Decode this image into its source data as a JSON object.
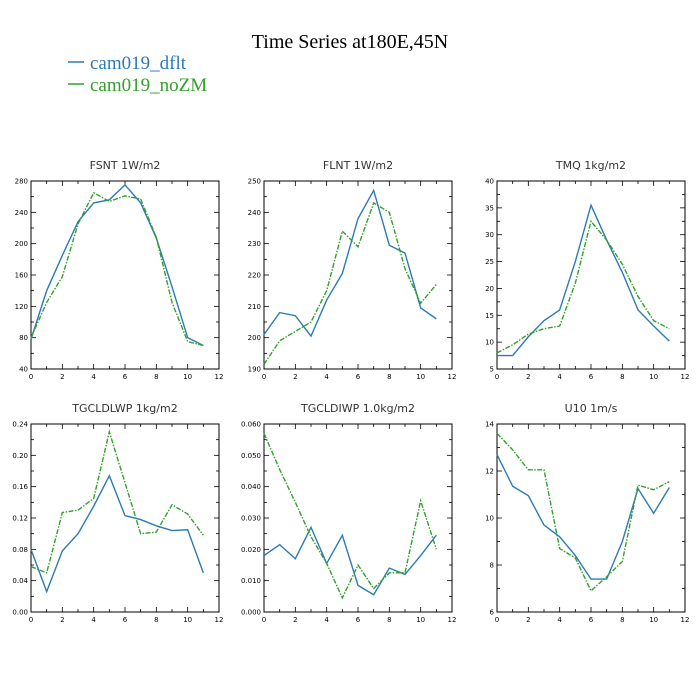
{
  "figure": {
    "title": "Time Series at180E,45N"
  },
  "colors": {
    "dflt": "#2c7bb6",
    "nozm": "#33a02c"
  },
  "chart_data": [
    {
      "type": "line",
      "title": "FSNT",
      "units": "1W/m2",
      "xlim": [
        0,
        12
      ],
      "xticks": [
        0,
        2,
        4,
        6,
        8,
        10,
        12
      ],
      "ylim": [
        40,
        280
      ],
      "yticks": [
        40,
        80,
        120,
        160,
        200,
        240,
        280
      ],
      "ytick_labels": [
        "40",
        "80",
        "120",
        "160",
        "200",
        "240",
        "280"
      ],
      "x": [
        0,
        1,
        2,
        3,
        4,
        5,
        6,
        7,
        8,
        9,
        10,
        11
      ],
      "series": [
        {
          "name": "cam019_dflt",
          "values": [
            78,
            140,
            185,
            228,
            252,
            256,
            275,
            252,
            207,
            145,
            80,
            70
          ]
        },
        {
          "name": "cam019_noZM",
          "values": [
            80,
            125,
            158,
            225,
            265,
            254,
            261,
            257,
            208,
            125,
            75,
            70
          ]
        }
      ]
    },
    {
      "type": "line",
      "title": "FLNT",
      "units": "1W/m2",
      "xlim": [
        0,
        12
      ],
      "xticks": [
        0,
        2,
        4,
        6,
        8,
        10,
        12
      ],
      "ylim": [
        190,
        250
      ],
      "yticks": [
        190,
        200,
        210,
        220,
        230,
        240,
        250
      ],
      "ytick_labels": [
        "190",
        "200",
        "210",
        "220",
        "230",
        "240",
        "250"
      ],
      "x": [
        0,
        1,
        2,
        3,
        4,
        5,
        6,
        7,
        8,
        9,
        10,
        11
      ],
      "series": [
        {
          "name": "cam019_dflt",
          "values": [
            201,
            208,
            207,
            200.5,
            212,
            220.5,
            238,
            247,
            229.5,
            227,
            209.5,
            206
          ]
        },
        {
          "name": "cam019_noZM",
          "values": [
            191.5,
            199,
            202,
            205,
            215,
            234,
            229,
            243,
            240,
            222,
            211,
            217
          ]
        }
      ]
    },
    {
      "type": "line",
      "title": "TMQ",
      "units": "1kg/m2",
      "xlim": [
        0,
        12
      ],
      "xticks": [
        0,
        2,
        4,
        6,
        8,
        10,
        12
      ],
      "ylim": [
        5,
        40
      ],
      "yticks": [
        5,
        10,
        15,
        20,
        25,
        30,
        35,
        40
      ],
      "ytick_labels": [
        "5",
        "10",
        "15",
        "20",
        "25",
        "30",
        "35",
        "40"
      ],
      "x": [
        0,
        1,
        2,
        3,
        4,
        5,
        6,
        7,
        8,
        9,
        10,
        11
      ],
      "series": [
        {
          "name": "cam019_dflt",
          "values": [
            7.5,
            7.5,
            11,
            14,
            16,
            25,
            35.5,
            29,
            23,
            16,
            13,
            10.2
          ]
        },
        {
          "name": "cam019_noZM",
          "values": [
            8,
            9.5,
            11.5,
            12.5,
            13,
            21,
            32.5,
            29,
            24.5,
            18.5,
            14,
            12.5
          ]
        }
      ]
    },
    {
      "type": "line",
      "title": "TGCLDLWP",
      "units": "1kg/m2",
      "xlim": [
        0,
        12
      ],
      "xticks": [
        0,
        2,
        4,
        6,
        8,
        10,
        12
      ],
      "ylim": [
        0,
        0.24
      ],
      "yticks": [
        0,
        0.04,
        0.08,
        0.12,
        0.16,
        0.2,
        0.24
      ],
      "ytick_labels": [
        "0.00",
        "0.04",
        "0.08",
        "0.12",
        "0.16",
        "0.20",
        "0.24"
      ],
      "x": [
        0,
        1,
        2,
        3,
        4,
        5,
        6,
        7,
        8,
        9,
        10,
        11
      ],
      "series": [
        {
          "name": "cam019_dflt",
          "values": [
            0.08,
            0.026,
            0.078,
            0.1,
            0.135,
            0.174,
            0.123,
            0.118,
            0.11,
            0.104,
            0.105,
            0.05
          ]
        },
        {
          "name": "cam019_noZM",
          "values": [
            0.058,
            0.05,
            0.127,
            0.13,
            0.145,
            0.23,
            0.165,
            0.1,
            0.102,
            0.137,
            0.125,
            0.098
          ]
        }
      ]
    },
    {
      "type": "line",
      "title": "TGCLDIWP",
      "units": "1.0kg/m2",
      "xlim": [
        0,
        12
      ],
      "xticks": [
        0,
        2,
        4,
        6,
        8,
        10,
        12
      ],
      "ylim": [
        0,
        0.06
      ],
      "yticks": [
        0,
        0.01,
        0.02,
        0.03,
        0.04,
        0.05,
        0.06
      ],
      "ytick_labels": [
        "0.000",
        "0.010",
        "0.020",
        "0.030",
        "0.040",
        "0.050",
        "0.060"
      ],
      "x": [
        0,
        1,
        2,
        3,
        4,
        5,
        6,
        7,
        8,
        9,
        10,
        11
      ],
      "series": [
        {
          "name": "cam019_dflt",
          "values": [
            0.018,
            0.0215,
            0.017,
            0.027,
            0.0155,
            0.0245,
            0.0085,
            0.0055,
            0.014,
            0.012,
            0.018,
            0.0245
          ]
        },
        {
          "name": "cam019_noZM",
          "values": [
            0.057,
            0.0455,
            0.035,
            0.024,
            0.0155,
            0.0045,
            0.015,
            0.0075,
            0.0125,
            0.0125,
            0.0355,
            0.02
          ]
        }
      ]
    },
    {
      "type": "line",
      "title": "U10",
      "units": "1m/s",
      "xlim": [
        0,
        12
      ],
      "xticks": [
        0,
        2,
        4,
        6,
        8,
        10,
        12
      ],
      "ylim": [
        6,
        14
      ],
      "yticks": [
        6,
        8,
        10,
        12,
        14
      ],
      "ytick_labels": [
        "6",
        "8",
        "10",
        "12",
        "14"
      ],
      "x": [
        0,
        1,
        2,
        3,
        4,
        5,
        6,
        7,
        8,
        9,
        10,
        11
      ],
      "series": [
        {
          "name": "cam019_dflt",
          "values": [
            12.7,
            11.35,
            10.95,
            9.7,
            9.2,
            8.4,
            7.4,
            7.4,
            9.0,
            11.25,
            10.2,
            11.3
          ]
        },
        {
          "name": "cam019_noZM",
          "values": [
            13.6,
            12.9,
            12.05,
            12.05,
            8.7,
            8.3,
            6.9,
            7.5,
            8.15,
            11.4,
            11.2,
            11.55
          ]
        }
      ]
    }
  ]
}
